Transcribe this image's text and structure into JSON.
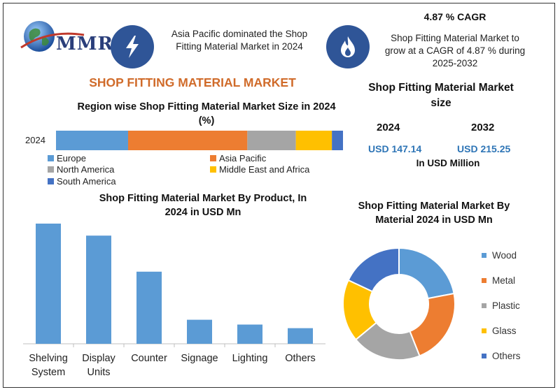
{
  "brand": {
    "logo_text": "MMR"
  },
  "header": {
    "headline_text": "Asia Pacific dominated the Shop Fitting Material Market in 2024",
    "cagr_title": "4.87 % CAGR",
    "cagr_text": "Shop Fitting Material Market to grow at a CAGR of 4.87 % during 2025-2032",
    "icons": [
      "lightning-icon",
      "flame-icon"
    ]
  },
  "market_title": "SHOP FITTING MATERIAL MARKET",
  "size_panel": {
    "title": "Shop Fitting Material Market size",
    "years": [
      "2024",
      "2032"
    ],
    "values": [
      "USD 147.14",
      "USD 215.25"
    ],
    "unit": "In USD Million"
  },
  "colors": {
    "europe": "#5b9bd5",
    "asia_pacific": "#ed7d31",
    "north_america": "#a5a5a5",
    "middle_east": "#ffc000",
    "south_america": "#4472c4",
    "bar_blue": "#5b9bd5",
    "title_orange": "#d06b2a",
    "value_blue": "#2e75b6",
    "icon_blue": "#2f5597"
  },
  "chart_data": [
    {
      "type": "bar",
      "orientation": "horizontal-stacked",
      "title": "Region wise Shop Fitting Material Market Size in 2024 (%)",
      "categories": [
        "2024"
      ],
      "series": [
        {
          "name": "Europe",
          "values": [
            26
          ]
        },
        {
          "name": "Asia Pacific",
          "values": [
            43
          ]
        },
        {
          "name": "North America",
          "values": [
            17.5
          ]
        },
        {
          "name": "Middle East and Africa",
          "values": [
            13
          ]
        },
        {
          "name": "South America",
          "values": [
            4
          ]
        }
      ],
      "legend": "bottom"
    },
    {
      "type": "bar",
      "title": "Shop Fitting Material Market By Product, In 2024 in USD Mn",
      "categories": [
        "Shelving System",
        "Display Units",
        "Counter",
        "Signage",
        "Lighting",
        "Others"
      ],
      "values": [
        100,
        90,
        60,
        20,
        16,
        13
      ],
      "ylim": [
        0,
        100
      ]
    },
    {
      "type": "pie",
      "style": "donut",
      "title": "Shop Fitting Material Market By Material 2024 in USD Mn",
      "categories": [
        "Wood",
        "Metal",
        "Plastic",
        "Glass",
        "Others"
      ],
      "values": [
        22,
        22,
        20,
        18,
        18
      ],
      "legend": "right"
    }
  ]
}
